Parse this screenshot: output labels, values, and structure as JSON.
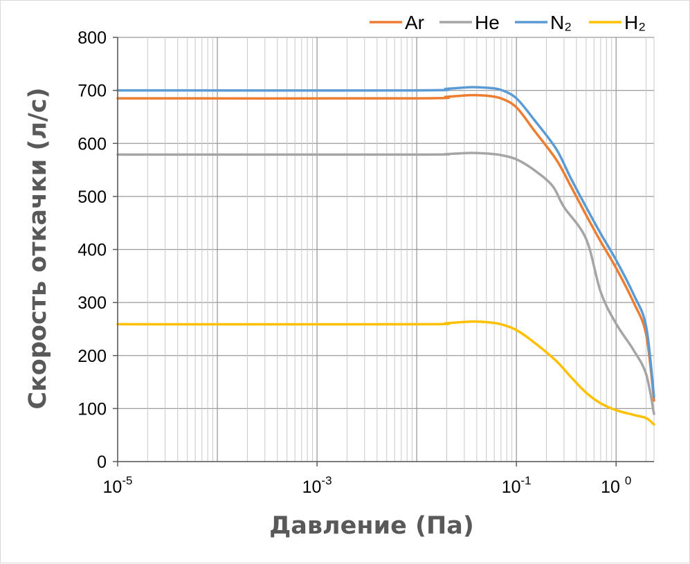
{
  "chart_data": {
    "type": "line",
    "xlabel": "Давление (Па)",
    "ylabel": "Скорость откачки (л/с)",
    "x_scale": "log",
    "xlim": [
      1e-05,
      2.4
    ],
    "ylim": [
      0,
      800
    ],
    "y_ticks": [
      0,
      100,
      200,
      300,
      400,
      500,
      600,
      700,
      800
    ],
    "x_ticks": [
      {
        "value": 1e-05,
        "base": "10",
        "exp": "-5"
      },
      {
        "value": 0.001,
        "base": "10",
        "exp": "-3"
      },
      {
        "value": 0.1,
        "base": "10",
        "exp": "-1"
      },
      {
        "value": 1,
        "base": "10 ",
        "exp": "0"
      }
    ],
    "grid": true,
    "legend_position": "top-right",
    "series": [
      {
        "name": "Ar",
        "color": "#ED7D31",
        "points": [
          [
            1e-05,
            685
          ],
          [
            0.01,
            685
          ],
          [
            0.02,
            688
          ],
          [
            0.035,
            691
          ],
          [
            0.05,
            690
          ],
          [
            0.07,
            685
          ],
          [
            0.1,
            668
          ],
          [
            0.15,
            625
          ],
          [
            0.25,
            570
          ],
          [
            0.35,
            520
          ],
          [
            0.5,
            465
          ],
          [
            0.7,
            415
          ],
          [
            1,
            365
          ],
          [
            1.5,
            300
          ],
          [
            2,
            240
          ],
          [
            2.4,
            115
          ]
        ]
      },
      {
        "name": "He",
        "color": "#A5A5A5",
        "points": [
          [
            1e-05,
            579
          ],
          [
            0.01,
            579
          ],
          [
            0.02,
            580
          ],
          [
            0.035,
            582
          ],
          [
            0.05,
            581
          ],
          [
            0.07,
            578
          ],
          [
            0.1,
            570
          ],
          [
            0.15,
            550
          ],
          [
            0.23,
            520
          ],
          [
            0.3,
            480
          ],
          [
            0.5,
            420
          ],
          [
            0.7,
            320
          ],
          [
            1,
            260
          ],
          [
            1.5,
            210
          ],
          [
            2,
            165
          ],
          [
            2.4,
            90
          ]
        ]
      },
      {
        "name": "N₂",
        "color": "#5B9BD5",
        "points": [
          [
            1e-05,
            700
          ],
          [
            0.01,
            700
          ],
          [
            0.02,
            703
          ],
          [
            0.035,
            706
          ],
          [
            0.05,
            705
          ],
          [
            0.07,
            701
          ],
          [
            0.1,
            685
          ],
          [
            0.15,
            645
          ],
          [
            0.25,
            590
          ],
          [
            0.35,
            535
          ],
          [
            0.5,
            480
          ],
          [
            0.7,
            430
          ],
          [
            1,
            380
          ],
          [
            1.5,
            315
          ],
          [
            2,
            255
          ],
          [
            2.4,
            122
          ]
        ]
      },
      {
        "name": "H₂",
        "color": "#FFC000",
        "points": [
          [
            1e-05,
            259
          ],
          [
            0.01,
            259
          ],
          [
            0.02,
            261
          ],
          [
            0.035,
            264
          ],
          [
            0.05,
            263
          ],
          [
            0.07,
            259
          ],
          [
            0.1,
            248
          ],
          [
            0.15,
            225
          ],
          [
            0.25,
            190
          ],
          [
            0.35,
            160
          ],
          [
            0.5,
            130
          ],
          [
            0.7,
            110
          ],
          [
            1,
            97
          ],
          [
            1.5,
            88
          ],
          [
            2,
            82
          ],
          [
            2.4,
            70
          ]
        ]
      }
    ]
  }
}
